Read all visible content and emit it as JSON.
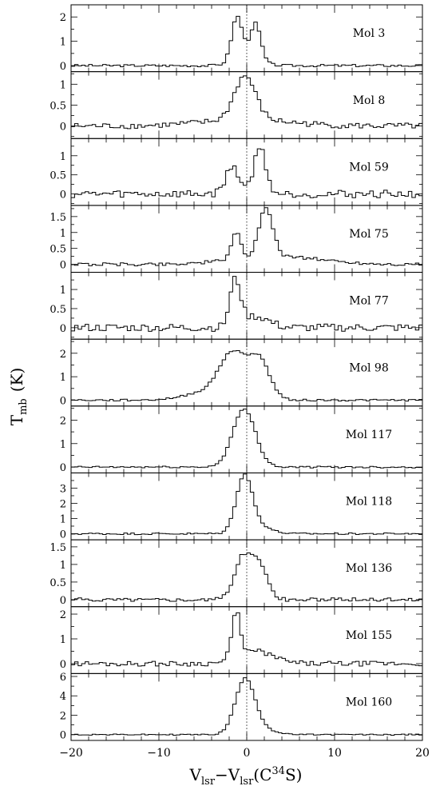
{
  "figure": {
    "ylabel_main": "T",
    "ylabel_sub": "mb",
    "ylabel_unit": "(K)",
    "xlabel_v1": "V",
    "xlabel_v1_sub": "lsr",
    "xlabel_dash": "−",
    "xlabel_v2": "V",
    "xlabel_v2_sub": "lsr",
    "xlabel_paren_open": "(C",
    "xlabel_sup": "34",
    "xlabel_paren_close": "S)"
  },
  "chart_data": {
    "type": "line",
    "style": "histogram",
    "xlim": [
      -20,
      20
    ],
    "x_ticks": [
      "−20",
      "−10",
      "0",
      "10",
      "20"
    ],
    "x_tick_values": [
      -20,
      -10,
      0,
      10,
      20
    ],
    "reference_line_x": 0,
    "panels": [
      {
        "label": "Mol 3",
        "ylim": [
          -0.25,
          2.5
        ],
        "yticks": [
          0,
          1,
          2
        ],
        "components": [
          {
            "c": -1.1,
            "a": 1.8,
            "w": 0.6
          },
          {
            "c": 1.0,
            "a": 1.5,
            "w": 0.6
          },
          {
            "c": 0.0,
            "a": 0.3,
            "w": 1.5
          }
        ],
        "noise": 0.05,
        "seed": 3
      },
      {
        "label": "Mol 8",
        "ylim": [
          -0.3,
          1.3
        ],
        "yticks": [
          0,
          0.5,
          1
        ],
        "components": [
          {
            "c": -0.2,
            "a": 1.05,
            "w": 1.2
          },
          {
            "c": 0.0,
            "a": 0.15,
            "w": 5.0
          }
        ],
        "noise": 0.07,
        "seed": 8
      },
      {
        "label": "Mol 59",
        "ylim": [
          -0.3,
          1.45
        ],
        "yticks": [
          0,
          0.5,
          1
        ],
        "components": [
          {
            "c": -1.6,
            "a": 0.7,
            "w": 0.8
          },
          {
            "c": 1.5,
            "a": 1.2,
            "w": 0.7
          }
        ],
        "noise": 0.1,
        "seed": 59
      },
      {
        "label": "Mol 75",
        "ylim": [
          -0.25,
          1.85
        ],
        "yticks": [
          0,
          0.5,
          1,
          1.5
        ],
        "components": [
          {
            "c": -1.2,
            "a": 0.9,
            "w": 0.5
          },
          {
            "c": 2.2,
            "a": 1.5,
            "w": 0.8
          },
          {
            "c": 3.5,
            "a": 0.25,
            "w": 5.0
          }
        ],
        "noise": 0.05,
        "seed": 75
      },
      {
        "label": "Mol 77",
        "ylim": [
          -0.3,
          1.45
        ],
        "yticks": [
          0,
          0.5,
          1
        ],
        "components": [
          {
            "c": -1.3,
            "a": 1.2,
            "w": 0.6
          },
          {
            "c": 1.0,
            "a": 0.3,
            "w": 1.5
          }
        ],
        "noise": 0.1,
        "seed": 77
      },
      {
        "label": "Mol 98",
        "ylim": [
          -0.25,
          2.6
        ],
        "yticks": [
          0,
          1,
          2
        ],
        "components": [
          {
            "c": -1.6,
            "a": 1.6,
            "w": 1.4
          },
          {
            "c": 1.4,
            "a": 1.6,
            "w": 1.2
          },
          {
            "c": -3.0,
            "a": 0.5,
            "w": 3.0
          }
        ],
        "noise": 0.04,
        "seed": 98
      },
      {
        "label": "Mol 117",
        "ylim": [
          -0.25,
          2.6
        ],
        "yticks": [
          0,
          1,
          2
        ],
        "components": [
          {
            "c": -0.3,
            "a": 2.45,
            "w": 1.3
          }
        ],
        "noise": 0.04,
        "seed": 117
      },
      {
        "label": "Mol 118",
        "ylim": [
          -0.4,
          4.0
        ],
        "yticks": [
          0,
          1,
          2,
          3
        ],
        "components": [
          {
            "c": -0.3,
            "a": 3.5,
            "w": 0.9
          },
          {
            "c": 1.0,
            "a": 0.6,
            "w": 1.5
          }
        ],
        "noise": 0.06,
        "seed": 118
      },
      {
        "label": "Mol 136",
        "ylim": [
          -0.2,
          1.7
        ],
        "yticks": [
          0,
          0.5,
          1,
          1.5
        ],
        "components": [
          {
            "c": -0.4,
            "a": 1.2,
            "w": 1.0
          },
          {
            "c": 1.5,
            "a": 0.9,
            "w": 0.9
          }
        ],
        "noise": 0.05,
        "seed": 136
      },
      {
        "label": "Mol 155",
        "ylim": [
          -0.4,
          2.3
        ],
        "yticks": [
          0,
          1,
          2
        ],
        "components": [
          {
            "c": -1.2,
            "a": 1.8,
            "w": 0.5
          },
          {
            "c": 1.0,
            "a": 0.5,
            "w": 2.0
          }
        ],
        "noise": 0.1,
        "seed": 155
      },
      {
        "label": "Mol 160",
        "ylim": [
          -0.6,
          6.3
        ],
        "yticks": [
          0,
          2,
          4,
          6
        ],
        "components": [
          {
            "c": -0.2,
            "a": 5.5,
            "w": 1.1
          },
          {
            "c": 1.5,
            "a": 0.6,
            "w": 1.5
          }
        ],
        "noise": 0.06,
        "seed": 160
      }
    ]
  }
}
